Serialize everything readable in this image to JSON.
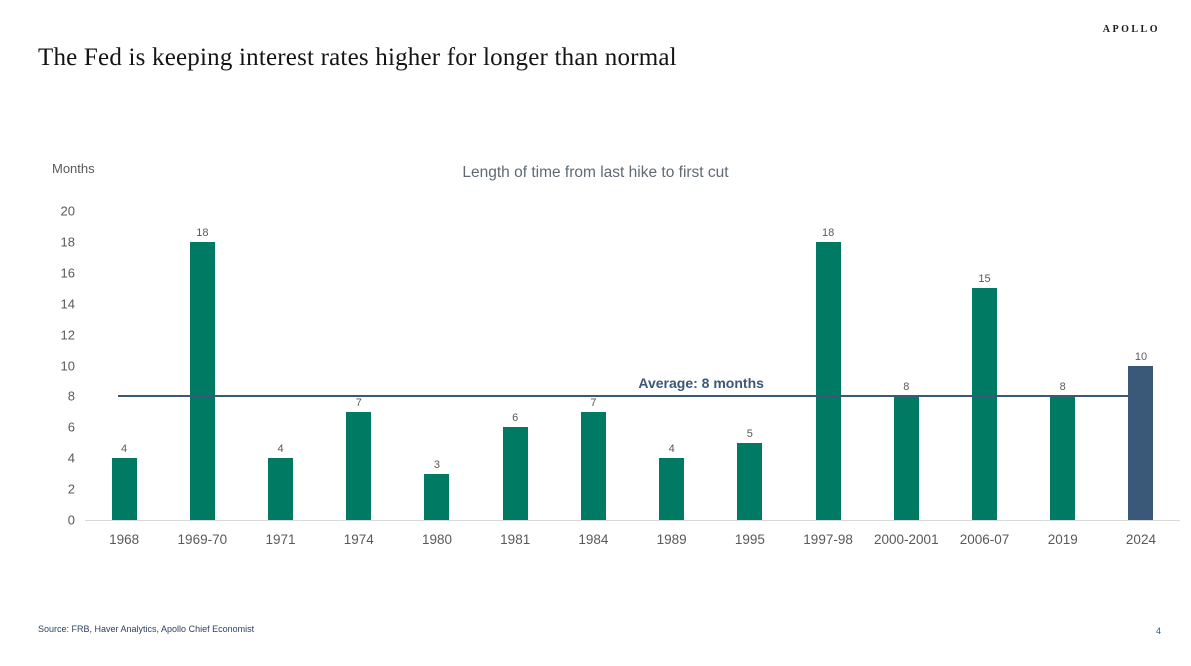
{
  "slide": {
    "title": "The Fed is keeping interest rates higher for longer than normal",
    "logo": "APOLLO",
    "footer": {
      "source": "Source: FRB, Haver Analytics, Apollo Chief Economist",
      "page_number": "4"
    }
  },
  "chart_data": {
    "type": "bar",
    "title": "Length of time from last hike to first cut",
    "ylabel": "Months",
    "xlabel": "",
    "categories": [
      "1968",
      "1969-70",
      "1971",
      "1974",
      "1980",
      "1981",
      "1984",
      "1989",
      "1995",
      "1997-98",
      "2000-2001",
      "2006-07",
      "2019",
      "2024"
    ],
    "values": [
      4,
      18,
      4,
      7,
      3,
      6,
      7,
      4,
      5,
      18,
      8,
      15,
      8,
      10
    ],
    "ylim": [
      0,
      20
    ],
    "yticks": [
      0,
      2,
      4,
      6,
      8,
      10,
      12,
      14,
      16,
      18,
      20
    ],
    "grid": false,
    "legend": false,
    "colors": {
      "bar": "#007a62",
      "highlight_bar": "#3a5878",
      "axis_text": "#595959",
      "baseline": "#d9d9d9"
    },
    "highlight_index": 13,
    "average_line": {
      "value": 8,
      "label": "Average: 8 months",
      "color": "#3a5878"
    }
  }
}
